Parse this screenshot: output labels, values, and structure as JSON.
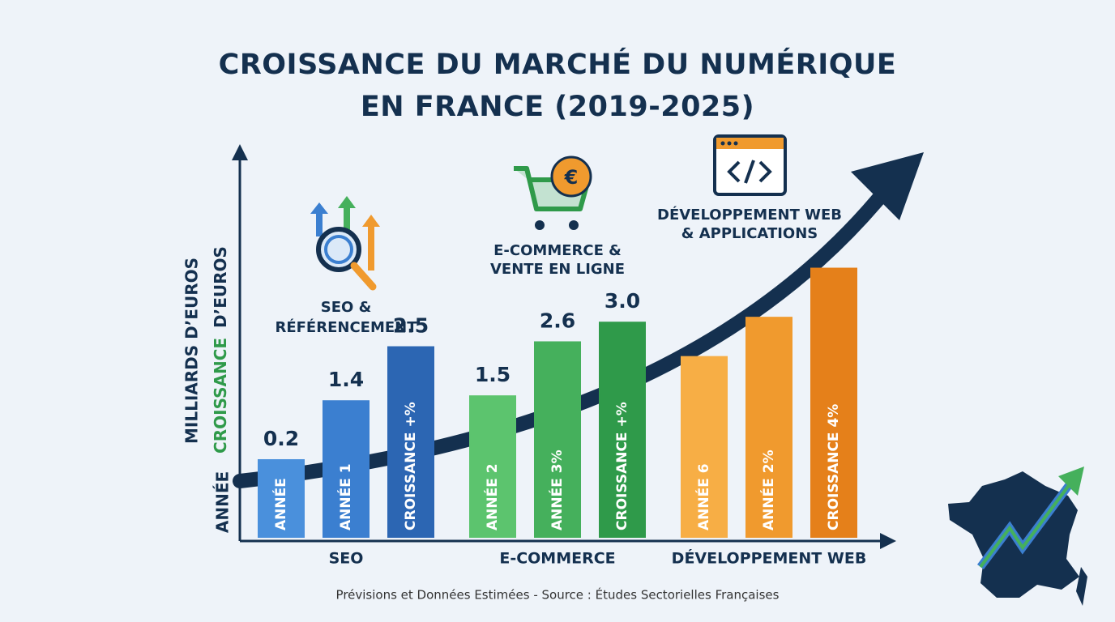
{
  "chart_data": {
    "type": "bar",
    "title": "CROISSANCE DU MARCHÉ DU NUMÉRIQUE EN FRANCE (2019-2025)",
    "ylabel": "MILLIARDS D’EUROS",
    "ylabel2": {
      "accent": "CROISSANCE",
      "rest": "D’EUROS"
    },
    "ylabel3": "ANNÉE",
    "ylim": [
      -1.4,
      6.5
    ],
    "source": "Prévisions et Données Estimées - Source : Études Sectorielles Françaises",
    "series": [
      {
        "name": "SEO",
        "heading": [
          "SEO &",
          "RÉFÉRENCEMENT"
        ],
        "bar_labels": [
          "ANNÉE",
          "ANNÉE 1",
          "CROISSANCE +%"
        ],
        "colors": [
          "#4a90dc",
          "#3b7fd0",
          "#2c66b3"
        ],
        "values": [
          0.2,
          1.4,
          2.5
        ],
        "value_labels": [
          "0.2",
          "1.4",
          "2.5"
        ]
      },
      {
        "name": "E-COMMERCE",
        "heading": [
          "E-COMMERCE &",
          "VENTE EN LIGNE"
        ],
        "bar_labels": [
          "ANNÉE 2",
          "ANNÉE 3%",
          "CROISSANCE +%"
        ],
        "colors": [
          "#5cc46e",
          "#45b05c",
          "#2f9a4a"
        ],
        "values": [
          1.5,
          2.6,
          3
        ],
        "value_labels": [
          "1.5",
          "2.6",
          "3.0"
        ]
      },
      {
        "name": "DÉVELOPPEMENT WEB",
        "heading": [
          "DÉVELOPPEMENT WEB",
          "& APPLICATIONS"
        ],
        "bar_labels": [
          "ANNÉE 6",
          "ANNÉE 2%",
          "CROISSANCE 4%"
        ],
        "colors": [
          "#f7ae45",
          "#f09a2e",
          "#e5801a"
        ],
        "values": [
          2.3,
          3.1,
          4.1
        ]
      }
    ]
  }
}
